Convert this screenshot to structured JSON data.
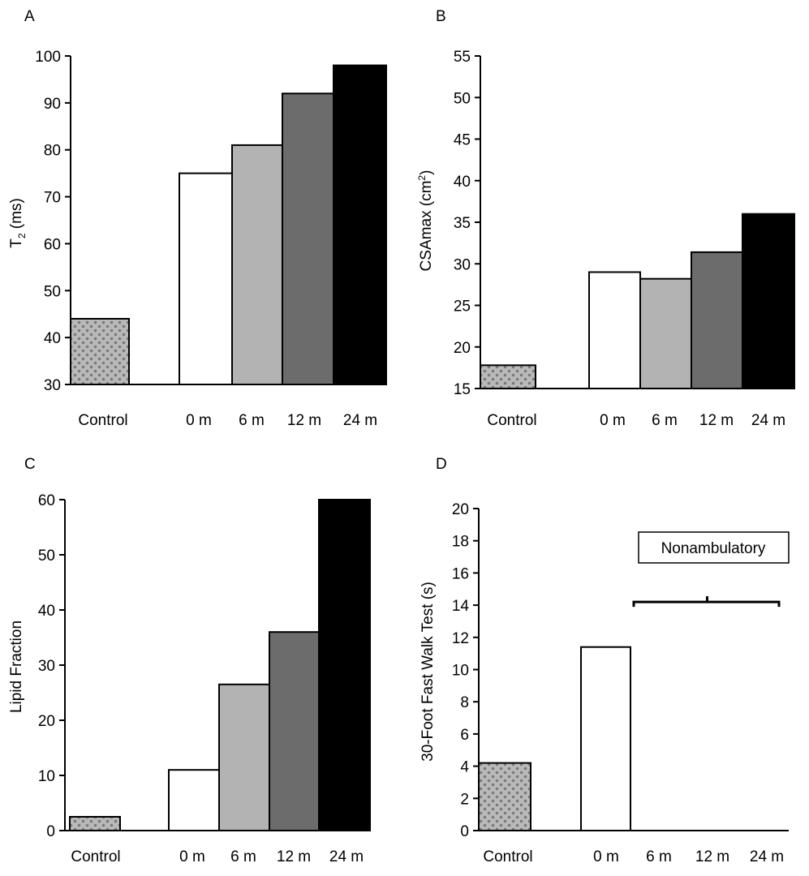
{
  "colors": {
    "control_pattern_base": "#b9b9b9",
    "control_pattern_dot": "#7a7a7a",
    "bar_0m": "#ffffff",
    "bar_6m": "#b3b3b3",
    "bar_12m": "#6c6c6c",
    "bar_24m": "#000000",
    "stroke": "#000000"
  },
  "chart_data": [
    {
      "panel": "A",
      "type": "bar",
      "categories": [
        "Control",
        "0 m",
        "6 m",
        "12 m",
        "24 m"
      ],
      "values": [
        44,
        75,
        81,
        92,
        98
      ],
      "ylabel": "T",
      "ylabel_sub": "2",
      "ylabel_post": " (ms)",
      "ylim": [
        30,
        100
      ],
      "yticks": [
        30,
        40,
        50,
        60,
        70,
        80,
        90,
        100
      ],
      "grid": false
    },
    {
      "panel": "B",
      "type": "bar",
      "categories": [
        "Control",
        "0 m",
        "6 m",
        "12 m",
        "24 m"
      ],
      "values": [
        17.8,
        29,
        28.2,
        31.4,
        36
      ],
      "ylabel": "CSAmax (cm",
      "ylabel_sup": "2",
      "ylabel_post": ")",
      "ylim": [
        15,
        55
      ],
      "yticks": [
        15,
        20,
        25,
        30,
        35,
        40,
        45,
        50,
        55
      ],
      "grid": false
    },
    {
      "panel": "C",
      "type": "bar",
      "categories": [
        "Control",
        "0 m",
        "6 m",
        "12 m",
        "24 m"
      ],
      "values": [
        2.5,
        11,
        26.5,
        36,
        60
      ],
      "ylabel": "Lipid Fraction",
      "ylim": [
        0,
        60
      ],
      "yticks": [
        0,
        10,
        20,
        30,
        40,
        50,
        60
      ],
      "grid": false
    },
    {
      "panel": "D",
      "type": "bar",
      "categories": [
        "Control",
        "0 m",
        "6 m",
        "12 m",
        "24 m"
      ],
      "values": [
        4.2,
        11.4,
        null,
        null,
        null
      ],
      "ylabel": "30-Foot Fast Walk Test (s)",
      "ylim": [
        0,
        20
      ],
      "yticks": [
        0,
        2,
        4,
        6,
        8,
        10,
        12,
        14,
        16,
        18,
        20
      ],
      "annotation": "Nonambulatory",
      "bracket_value": 14.2,
      "grid": false
    }
  ]
}
